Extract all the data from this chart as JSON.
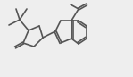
{
  "bg_color": "#eeeeee",
  "line_color": "#555555",
  "lw": 1.2,
  "figsize": [
    1.49,
    0.86
  ],
  "dpi": 100,
  "xlim": [
    0,
    149
  ],
  "ylim": [
    0,
    86
  ]
}
